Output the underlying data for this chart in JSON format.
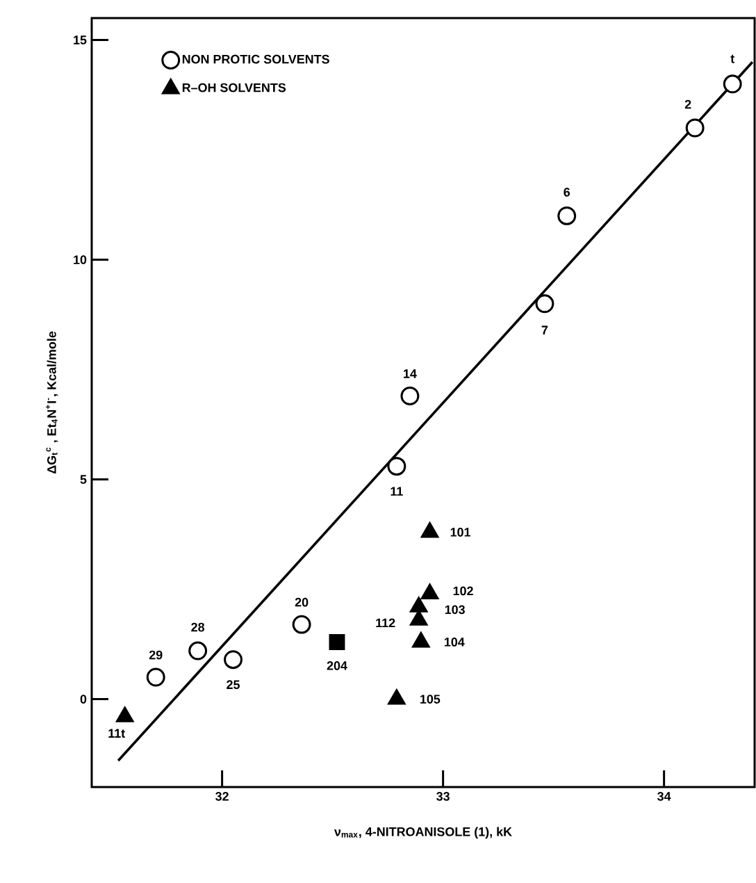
{
  "chart_data": {
    "type": "scatter",
    "xlabel": "ν$_{max}$, 4-NITROANISOLE (1), kK",
    "ylabel": "ΔG$_{t}$$^{c}$ , Et$_{4}$N$^{+}$I$^{-}$, Kcal/mole",
    "xlim": [
      31.41,
      34.41
    ],
    "xticks": [
      32,
      33,
      34
    ],
    "ylim": [
      -2,
      15.5
    ],
    "yticks": [
      0,
      5,
      10,
      15
    ],
    "legend": "top left",
    "grid": false,
    "series": [
      {
        "name": "NON PROTIC SOLVENTS",
        "color": "#000000",
        "marker": "circle",
        "x": [
          34.31,
          34.14,
          33.56,
          33.46,
          32.85,
          32.79,
          32.36,
          32.05,
          31.89,
          31.7
        ],
        "values": [
          14.0,
          13.0,
          11.0,
          9.0,
          6.9,
          5.3,
          1.7,
          0.9,
          1.1,
          0.5
        ]
      },
      {
        "color": "#000000",
        "marker": "square",
        "x": [
          32.52
        ],
        "values": [
          1.3
        ]
      },
      {
        "name": "R–OH SOLVENTS",
        "color": "#000000",
        "marker": "triangle",
        "x": [
          31.56,
          32.94,
          32.94,
          32.89,
          32.89,
          32.9,
          32.79
        ],
        "values": [
          -0.4,
          3.8,
          2.4,
          2.1,
          1.8,
          1.3,
          0.0
        ]
      },
      {
        "type": "line",
        "color": "#000000",
        "marker": "none",
        "x": [
          31.53,
          34.4
        ],
        "values": [
          -1.4,
          14.5
        ]
      }
    ],
    "annotations": [
      {
        "text": "t",
        "x": 34.31,
        "y": 14.0
      },
      {
        "text": "2",
        "x": 34.14,
        "y": 13.0
      },
      {
        "text": "6",
        "x": 33.56,
        "y": 11.0
      },
      {
        "text": "7",
        "x": 33.46,
        "y": 9.0
      },
      {
        "text": "14",
        "x": 32.85,
        "y": 6.9
      },
      {
        "text": "11",
        "x": 32.79,
        "y": 5.3
      },
      {
        "text": "20",
        "x": 32.36,
        "y": 1.7
      },
      {
        "text": "25",
        "x": 32.05,
        "y": 0.9
      },
      {
        "text": "28",
        "x": 31.89,
        "y": 1.1
      },
      {
        "text": "29",
        "x": 31.7,
        "y": 0.5
      },
      {
        "text": "204",
        "x": 32.52,
        "y": 1.3
      },
      {
        "text": "11t",
        "x": 31.56,
        "y": -0.4
      },
      {
        "text": "101",
        "x": 32.94,
        "y": 3.8
      },
      {
        "text": "102",
        "x": 32.94,
        "y": 2.4
      },
      {
        "text": "103",
        "x": 32.89,
        "y": 2.1
      },
      {
        "text": "112",
        "x": 32.89,
        "y": 1.8
      },
      {
        "text": "104",
        "x": 32.9,
        "y": 1.3
      },
      {
        "text": "105",
        "x": 32.79,
        "y": 0.0
      }
    ]
  }
}
